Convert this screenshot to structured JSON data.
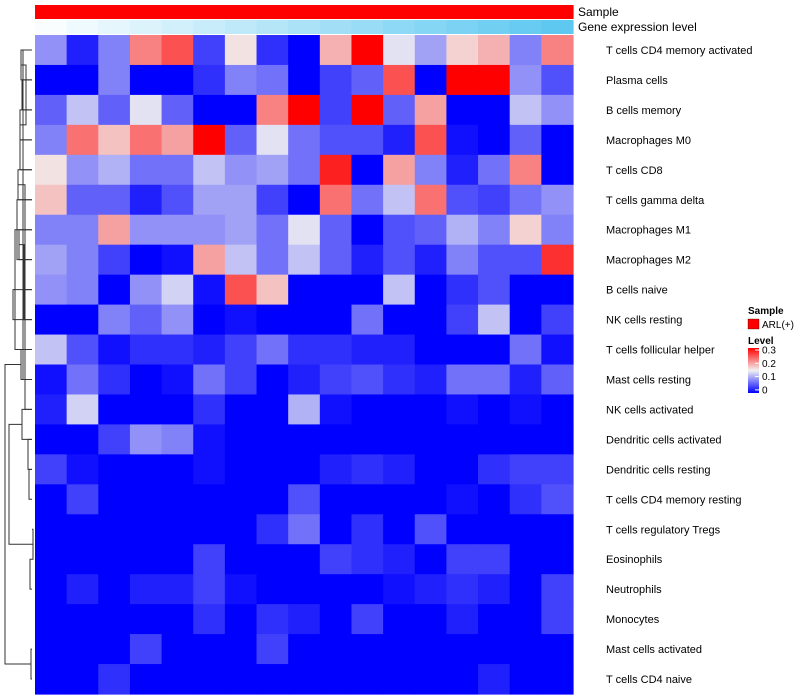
{
  "chart_data": {
    "type": "heatmap",
    "annotation_tracks": [
      {
        "name": "Sample",
        "legend_title": "Sample",
        "legend_entry": "ARL(+)",
        "color": "#ff0000"
      },
      {
        "name": "Gene expression level",
        "values": [
          0.02,
          0.05,
          0.08,
          0.11,
          0.14,
          0.17,
          0.2,
          0.23,
          0.26,
          0.29,
          0.32,
          0.35,
          0.38,
          0.41,
          0.44,
          0.47,
          0.5
        ],
        "low_color": "#ffffff",
        "high_color": "#5ec8f0"
      }
    ],
    "rows": [
      "T cells CD4 memory activated",
      "Plasma cells",
      "B cells memory",
      "Macrophages M0",
      "T cells CD8",
      "T cells gamma delta",
      "Macrophages M1",
      "Macrophages M2",
      "B cells naive",
      "NK cells resting",
      "T cells follicular helper",
      "Mast cells resting",
      "NK cells activated",
      "Dendritic cells activated",
      "Dendritic cells resting",
      "T cells CD4 memory resting",
      "T cells regulatory  Tregs",
      "Eosinophils",
      "Neutrophils",
      "Monocytes",
      "Mast cells activated",
      "T cells CD4 naive"
    ],
    "values": [
      [
        0.09,
        0.02,
        0.08,
        0.22,
        0.25,
        0.04,
        0.16,
        0.03,
        0.0,
        0.19,
        0.31,
        0.14,
        0.1,
        0.17,
        0.19,
        0.08,
        0.22
      ],
      [
        0.0,
        0.0,
        0.08,
        0.0,
        0.0,
        0.03,
        0.08,
        0.07,
        0.0,
        0.04,
        0.06,
        0.25,
        0.0,
        0.31,
        0.32,
        0.09,
        0.05
      ],
      [
        0.06,
        0.12,
        0.06,
        0.14,
        0.06,
        0.0,
        0.0,
        0.22,
        0.31,
        0.04,
        0.31,
        0.06,
        0.2,
        0.0,
        0.0,
        0.12,
        0.09
      ],
      [
        0.08,
        0.23,
        0.18,
        0.23,
        0.2,
        0.31,
        0.06,
        0.14,
        0.07,
        0.05,
        0.05,
        0.02,
        0.25,
        0.01,
        0.0,
        0.06,
        0.0
      ],
      [
        0.16,
        0.09,
        0.11,
        0.07,
        0.07,
        0.12,
        0.09,
        0.1,
        0.07,
        0.28,
        0.0,
        0.2,
        0.08,
        0.02,
        0.07,
        0.22,
        0.0
      ],
      [
        0.18,
        0.06,
        0.06,
        0.02,
        0.05,
        0.1,
        0.1,
        0.04,
        0.0,
        0.23,
        0.07,
        0.12,
        0.23,
        0.05,
        0.04,
        0.07,
        0.09
      ],
      [
        0.08,
        0.08,
        0.2,
        0.09,
        0.09,
        0.09,
        0.1,
        0.07,
        0.14,
        0.06,
        0.0,
        0.05,
        0.06,
        0.11,
        0.08,
        0.17,
        0.08
      ],
      [
        0.1,
        0.08,
        0.04,
        0.0,
        0.01,
        0.2,
        0.12,
        0.07,
        0.12,
        0.06,
        0.02,
        0.05,
        0.02,
        0.08,
        0.05,
        0.05,
        0.27
      ],
      [
        0.09,
        0.08,
        0.0,
        0.09,
        0.13,
        0.01,
        0.25,
        0.18,
        0.0,
        0.0,
        0.0,
        0.12,
        0.0,
        0.03,
        0.05,
        0.0,
        0.0
      ],
      [
        0.0,
        0.0,
        0.08,
        0.06,
        0.09,
        0.0,
        0.01,
        0.0,
        0.0,
        0.0,
        0.07,
        0.0,
        0.0,
        0.04,
        0.12,
        0.0,
        0.04
      ],
      [
        0.12,
        0.05,
        0.01,
        0.03,
        0.03,
        0.02,
        0.04,
        0.07,
        0.03,
        0.03,
        0.02,
        0.02,
        0.0,
        0.0,
        0.0,
        0.07,
        0.01
      ],
      [
        0.01,
        0.07,
        0.03,
        0.0,
        0.01,
        0.07,
        0.04,
        0.0,
        0.02,
        0.04,
        0.05,
        0.03,
        0.02,
        0.07,
        0.07,
        0.02,
        0.06
      ],
      [
        0.02,
        0.13,
        0.0,
        0.0,
        0.0,
        0.03,
        0.0,
        0.0,
        0.11,
        0.01,
        0.0,
        0.0,
        0.0,
        0.01,
        0.0,
        0.01,
        0.0
      ],
      [
        0.0,
        0.0,
        0.04,
        0.09,
        0.08,
        0.01,
        0.0,
        0.0,
        0.0,
        0.0,
        0.0,
        0.0,
        0.0,
        0.0,
        0.0,
        0.0,
        0.0
      ],
      [
        0.04,
        0.01,
        0.0,
        0.0,
        0.0,
        0.01,
        0.0,
        0.0,
        0.0,
        0.02,
        0.03,
        0.02,
        0.0,
        0.0,
        0.03,
        0.04,
        0.04
      ],
      [
        0.0,
        0.04,
        0.0,
        0.0,
        0.0,
        0.0,
        0.0,
        0.0,
        0.05,
        0.0,
        0.0,
        0.0,
        0.0,
        0.01,
        0.0,
        0.03,
        0.05
      ],
      [
        0.0,
        0.0,
        0.0,
        0.0,
        0.0,
        0.0,
        0.0,
        0.03,
        0.07,
        0.0,
        0.03,
        0.0,
        0.05,
        0.0,
        0.0,
        0.0,
        0.0
      ],
      [
        0.0,
        0.0,
        0.0,
        0.0,
        0.0,
        0.04,
        0.0,
        0.0,
        0.0,
        0.04,
        0.03,
        0.02,
        0.0,
        0.04,
        0.04,
        0.0,
        0.0
      ],
      [
        0.0,
        0.02,
        0.0,
        0.02,
        0.02,
        0.04,
        0.01,
        0.0,
        0.0,
        0.0,
        0.0,
        0.01,
        0.02,
        0.03,
        0.02,
        0.0,
        0.04
      ],
      [
        0.0,
        0.0,
        0.0,
        0.0,
        0.0,
        0.03,
        0.0,
        0.03,
        0.02,
        0.0,
        0.04,
        0.0,
        0.0,
        0.02,
        0.0,
        0.0,
        0.04
      ],
      [
        0.0,
        0.0,
        0.0,
        0.04,
        0.0,
        0.0,
        0.0,
        0.04,
        0.0,
        0.0,
        0.0,
        0.0,
        0.0,
        0.0,
        0.0,
        0.0,
        0.0
      ],
      [
        0.0,
        0.0,
        0.03,
        0.0,
        0.0,
        0.0,
        0.0,
        0.0,
        0.0,
        0.0,
        0.0,
        0.0,
        0.0,
        0.0,
        0.02,
        0.0,
        0.0
      ]
    ],
    "color_scale": {
      "title": "Level",
      "min": 0,
      "max": 0.3,
      "stops": [
        {
          "value": 0,
          "color": "#0000ff"
        },
        {
          "value": 0.15,
          "color": "#f2f2f2"
        },
        {
          "value": 0.3,
          "color": "#ff0000"
        }
      ],
      "tick_labels": [
        "0.3",
        "0.2",
        "0.1",
        "0"
      ]
    },
    "row_dendrogram": "left",
    "column_dendrogram": "none"
  }
}
